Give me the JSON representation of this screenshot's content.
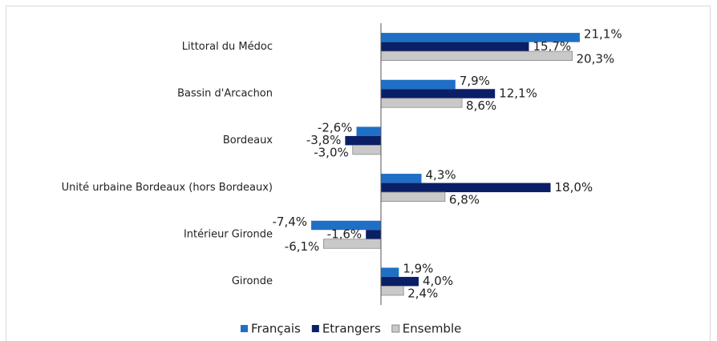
{
  "chart_data": {
    "type": "hbar",
    "categories": [
      "Littoral du Médoc",
      "Bassin d'Arcachon",
      "Bordeaux",
      "Unité urbaine Bordeaux (hors Bordeaux)",
      "Intérieur Gironde",
      "Gironde"
    ],
    "series": [
      {
        "name": "Français",
        "color": "#1f6fc5",
        "values": [
          21.1,
          7.9,
          -2.6,
          4.3,
          -7.4,
          1.9
        ],
        "value_labels": [
          "21,1%",
          "7,9%",
          "-2,6%",
          "4,3%",
          "-7,4%",
          "1,9%"
        ]
      },
      {
        "name": "Etrangers",
        "color": "#0a1f66",
        "values": [
          15.7,
          12.1,
          -3.8,
          18.0,
          -1.6,
          4.0
        ],
        "value_labels": [
          "15,7%",
          "12,1%",
          "-3,8%",
          "18,0%",
          "-1,6%",
          "4,0%"
        ]
      },
      {
        "name": "Ensemble",
        "color": "#c9c9c9",
        "values": [
          20.3,
          8.6,
          -3.0,
          6.8,
          -6.1,
          2.4
        ],
        "value_labels": [
          "20,3%",
          "8,6%",
          "-3,0%",
          "6,8%",
          "-6,1%",
          "2,4%"
        ]
      }
    ],
    "xlim": [
      -8,
      22
    ],
    "legend": "bottom"
  }
}
